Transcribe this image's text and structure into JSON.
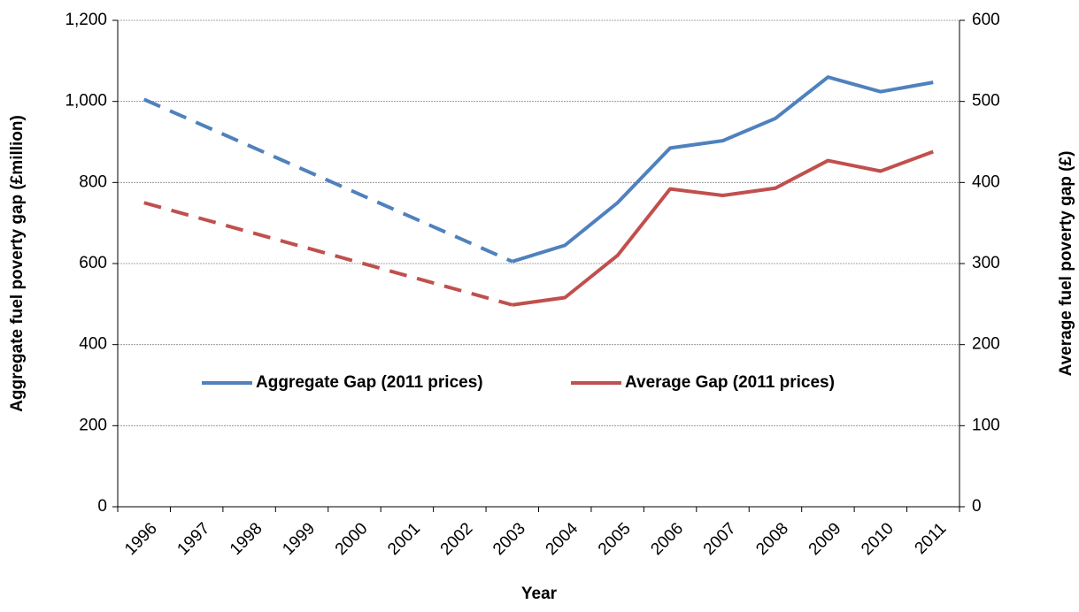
{
  "chart_data": {
    "type": "line",
    "x_label": "Year",
    "y_label": "Aggregate fuel poverty gap (£million)",
    "y2_label": "Average fuel poverty gap (£)",
    "categories": [
      "1996",
      "1997",
      "1998",
      "1999",
      "2000",
      "2001",
      "2002",
      "2003",
      "2004",
      "2005",
      "2006",
      "2007",
      "2008",
      "2009",
      "2010",
      "2011"
    ],
    "series": [
      {
        "name": "Aggregate Gap (2011 prices)",
        "color": "#4f81bd",
        "values": [
          1005,
          null,
          null,
          null,
          null,
          null,
          null,
          605,
          645,
          750,
          885,
          903,
          958,
          1060,
          1024,
          1047
        ]
      },
      {
        "name": "Average Gap (2011 prices)",
        "color": "#c0504d",
        "axis": "y2",
        "values": [
          375,
          null,
          null,
          null,
          null,
          null,
          null,
          249,
          258,
          310,
          392,
          384,
          393,
          427,
          414,
          438
        ]
      }
    ],
    "gap_style": "dashed",
    "ylim": [
      0,
      1200
    ],
    "yticks": [
      0,
      200,
      400,
      600,
      800,
      {
        "value": 1000,
        "label": "1,000"
      },
      {
        "value": 1200,
        "label": "1,200"
      }
    ],
    "y2lim": [
      0,
      600
    ],
    "y2ticks": [
      0,
      100,
      200,
      300,
      400,
      500,
      600
    ],
    "grid": true,
    "legend": "center"
  }
}
